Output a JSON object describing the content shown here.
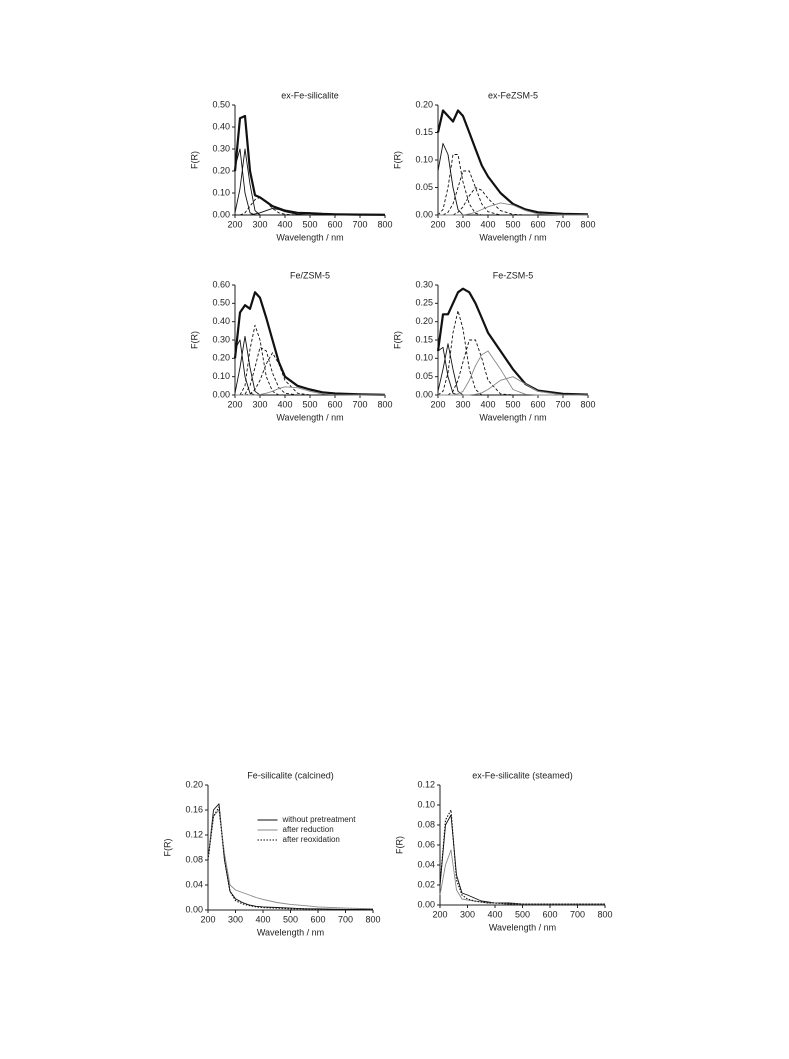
{
  "chart_data": [
    {
      "type": "line",
      "title": "ex-Fe-silicalite",
      "x_label": "Wavelength / nm",
      "y_label": "F(R)",
      "xlim": [
        200,
        800
      ],
      "xticks": [
        200,
        300,
        400,
        500,
        600,
        700,
        800
      ],
      "ylim": [
        0,
        0.5
      ],
      "yticks": [
        {
          "value": 0,
          "label": "0.00"
        },
        {
          "value": 0.1,
          "label": "0.10"
        },
        {
          "value": 0.2,
          "label": "0.20"
        },
        {
          "value": 0.3,
          "label": "0.30"
        },
        {
          "value": 0.4,
          "label": "0.40"
        },
        {
          "value": 0.5,
          "label": "0.50"
        }
      ],
      "x": [
        200,
        220,
        240,
        260,
        280,
        300,
        325,
        350,
        375,
        400,
        450,
        500,
        550,
        600,
        700,
        800
      ],
      "series": [
        {
          "color": "#111111",
          "style": "bold",
          "values": [
            0.2,
            0.44,
            0.45,
            0.2,
            0.09,
            0.08,
            0.06,
            0.04,
            0.03,
            0.02,
            0.01,
            0.008,
            0.005,
            0.003,
            0.002,
            0.001
          ]
        },
        {
          "color": "#111111",
          "style": "solid",
          "values": [
            0.22,
            0.3,
            0.1,
            0.01,
            0,
            0,
            0,
            0,
            0,
            0,
            0,
            0,
            0,
            0,
            0,
            0
          ]
        },
        {
          "color": "#111111",
          "style": "solid",
          "values": [
            0.01,
            0.12,
            0.3,
            0.14,
            0.02,
            0,
            0,
            0,
            0,
            0,
            0,
            0,
            0,
            0,
            0,
            0
          ]
        },
        {
          "color": "#111111",
          "style": "dashed",
          "values": [
            0,
            0,
            0.01,
            0.04,
            0.07,
            0.08,
            0.06,
            0.03,
            0.01,
            0.003,
            0,
            0,
            0,
            0,
            0,
            0
          ]
        },
        {
          "color": "#111111",
          "style": "solid",
          "values": [
            0,
            0,
            0,
            0,
            0.005,
            0.01,
            0.02,
            0.03,
            0.025,
            0.015,
            0.003,
            0,
            0,
            0,
            0,
            0
          ]
        }
      ]
    },
    {
      "type": "line",
      "title": "ex-FeZSM-5",
      "x_label": "Wavelength / nm",
      "y_label": "F(R)",
      "xlim": [
        200,
        800
      ],
      "xticks": [
        200,
        300,
        400,
        500,
        600,
        700,
        800
      ],
      "ylim": [
        0,
        0.2
      ],
      "yticks": [
        {
          "value": 0,
          "label": "0.00"
        },
        {
          "value": 0.05,
          "label": "0.05"
        },
        {
          "value": 0.1,
          "label": "0.10"
        },
        {
          "value": 0.15,
          "label": "0.15"
        },
        {
          "value": 0.2,
          "label": "0.20"
        }
      ],
      "x": [
        200,
        220,
        240,
        260,
        280,
        300,
        325,
        350,
        375,
        400,
        450,
        500,
        550,
        600,
        700,
        800
      ],
      "series": [
        {
          "color": "#111111",
          "style": "bold",
          "values": [
            0.15,
            0.19,
            0.18,
            0.17,
            0.19,
            0.18,
            0.15,
            0.12,
            0.09,
            0.07,
            0.04,
            0.02,
            0.01,
            0.005,
            0.002,
            0.001
          ]
        },
        {
          "color": "#111111",
          "style": "solid",
          "values": [
            0.08,
            0.13,
            0.11,
            0.05,
            0.01,
            0,
            0,
            0,
            0,
            0,
            0,
            0,
            0,
            0,
            0,
            0
          ]
        },
        {
          "color": "#111111",
          "style": "dashed",
          "values": [
            0,
            0.01,
            0.05,
            0.11,
            0.11,
            0.06,
            0.02,
            0.003,
            0,
            0,
            0,
            0,
            0,
            0,
            0,
            0
          ]
        },
        {
          "color": "#111111",
          "style": "dashed",
          "values": [
            0,
            0,
            0.005,
            0.02,
            0.05,
            0.08,
            0.08,
            0.05,
            0.02,
            0.006,
            0,
            0,
            0,
            0,
            0,
            0
          ]
        },
        {
          "color": "#111111",
          "style": "dashed",
          "values": [
            0,
            0,
            0,
            0,
            0.005,
            0.015,
            0.035,
            0.05,
            0.045,
            0.03,
            0.008,
            0.001,
            0,
            0,
            0,
            0
          ]
        },
        {
          "color": "#888888",
          "style": "solid",
          "values": [
            0,
            0,
            0,
            0,
            0,
            0,
            0.002,
            0.005,
            0.01,
            0.015,
            0.022,
            0.018,
            0.008,
            0.002,
            0,
            0
          ]
        }
      ]
    },
    {
      "type": "line",
      "title": "Fe/ZSM-5",
      "x_label": "Wavelength / nm",
      "y_label": "F(R)",
      "xlim": [
        200,
        800
      ],
      "xticks": [
        200,
        300,
        400,
        500,
        600,
        700,
        800
      ],
      "ylim": [
        0,
        0.6
      ],
      "yticks": [
        {
          "value": 0,
          "label": "0.00"
        },
        {
          "value": 0.1,
          "label": "0.10"
        },
        {
          "value": 0.2,
          "label": "0.20"
        },
        {
          "value": 0.3,
          "label": "0.30"
        },
        {
          "value": 0.4,
          "label": "0.40"
        },
        {
          "value": 0.5,
          "label": "0.50"
        },
        {
          "value": 0.6,
          "label": "0.60"
        }
      ],
      "x": [
        200,
        220,
        240,
        260,
        280,
        300,
        325,
        350,
        375,
        400,
        450,
        500,
        550,
        600,
        700,
        800
      ],
      "series": [
        {
          "color": "#111111",
          "style": "bold",
          "values": [
            0.2,
            0.45,
            0.49,
            0.47,
            0.56,
            0.53,
            0.42,
            0.3,
            0.18,
            0.1,
            0.05,
            0.03,
            0.015,
            0.008,
            0.003,
            0.001
          ]
        },
        {
          "color": "#111111",
          "style": "solid",
          "values": [
            0.25,
            0.3,
            0.1,
            0.01,
            0,
            0,
            0,
            0,
            0,
            0,
            0,
            0,
            0,
            0,
            0,
            0
          ]
        },
        {
          "color": "#111111",
          "style": "solid",
          "values": [
            0.01,
            0.15,
            0.32,
            0.15,
            0.02,
            0,
            0,
            0,
            0,
            0,
            0,
            0,
            0,
            0,
            0,
            0
          ]
        },
        {
          "color": "#111111",
          "style": "dashed",
          "values": [
            0,
            0,
            0.05,
            0.25,
            0.38,
            0.3,
            0.1,
            0.02,
            0,
            0,
            0,
            0,
            0,
            0,
            0,
            0
          ]
        },
        {
          "color": "#111111",
          "style": "dashed",
          "values": [
            0,
            0,
            0.005,
            0.05,
            0.15,
            0.26,
            0.24,
            0.12,
            0.04,
            0.01,
            0,
            0,
            0,
            0,
            0,
            0
          ]
        },
        {
          "color": "#111111",
          "style": "dashed",
          "values": [
            0,
            0,
            0,
            0.005,
            0.03,
            0.08,
            0.17,
            0.23,
            0.17,
            0.08,
            0.01,
            0,
            0,
            0,
            0,
            0
          ]
        },
        {
          "color": "#888888",
          "style": "solid",
          "values": [
            0,
            0,
            0,
            0,
            0,
            0.002,
            0.01,
            0.02,
            0.035,
            0.045,
            0.04,
            0.02,
            0.005,
            0.001,
            0,
            0
          ]
        }
      ]
    },
    {
      "type": "line",
      "title": "Fe-ZSM-5",
      "x_label": "Wavelength / nm",
      "y_label": "F(R)",
      "xlim": [
        200,
        800
      ],
      "xticks": [
        200,
        300,
        400,
        500,
        600,
        700,
        800
      ],
      "ylim": [
        0,
        0.3
      ],
      "yticks": [
        {
          "value": 0,
          "label": "0.00"
        },
        {
          "value": 0.05,
          "label": "0.05"
        },
        {
          "value": 0.1,
          "label": "0.10"
        },
        {
          "value": 0.15,
          "label": "0.15"
        },
        {
          "value": 0.2,
          "label": "0.20"
        },
        {
          "value": 0.25,
          "label": "0.25"
        },
        {
          "value": 0.3,
          "label": "0.30"
        }
      ],
      "x": [
        200,
        220,
        240,
        260,
        280,
        300,
        325,
        350,
        375,
        400,
        450,
        500,
        550,
        600,
        700,
        800
      ],
      "series": [
        {
          "color": "#111111",
          "style": "bold",
          "values": [
            0.12,
            0.22,
            0.22,
            0.25,
            0.28,
            0.29,
            0.28,
            0.25,
            0.21,
            0.17,
            0.12,
            0.07,
            0.03,
            0.012,
            0.003,
            0.001
          ]
        },
        {
          "color": "#111111",
          "style": "solid",
          "values": [
            0.12,
            0.13,
            0.05,
            0.005,
            0,
            0,
            0,
            0,
            0,
            0,
            0,
            0,
            0,
            0,
            0,
            0
          ]
        },
        {
          "color": "#111111",
          "style": "solid",
          "values": [
            0.01,
            0.07,
            0.14,
            0.07,
            0.01,
            0,
            0,
            0,
            0,
            0,
            0,
            0,
            0,
            0,
            0,
            0
          ]
        },
        {
          "color": "#111111",
          "style": "dashed",
          "values": [
            0,
            0.01,
            0.06,
            0.17,
            0.23,
            0.18,
            0.07,
            0.015,
            0,
            0,
            0,
            0,
            0,
            0,
            0,
            0
          ]
        },
        {
          "color": "#111111",
          "style": "dashed",
          "values": [
            0,
            0,
            0,
            0.01,
            0.04,
            0.09,
            0.15,
            0.15,
            0.1,
            0.04,
            0.003,
            0,
            0,
            0,
            0,
            0
          ]
        },
        {
          "color": "#888888",
          "style": "solid",
          "values": [
            0,
            0,
            0,
            0,
            0.003,
            0.01,
            0.04,
            0.08,
            0.11,
            0.12,
            0.07,
            0.015,
            0.002,
            0,
            0,
            0
          ]
        },
        {
          "color": "#888888",
          "style": "solid",
          "values": [
            0,
            0,
            0,
            0,
            0,
            0,
            0,
            0.002,
            0.006,
            0.015,
            0.04,
            0.05,
            0.03,
            0.01,
            0,
            0
          ]
        }
      ]
    },
    {
      "type": "line",
      "title": "Fe-silicalite (calcined)",
      "x_label": "Wavelength / nm",
      "y_label": "F(R)",
      "xlim": [
        200,
        800
      ],
      "xticks": [
        200,
        300,
        400,
        500,
        600,
        700,
        800
      ],
      "ylim": [
        0,
        0.2
      ],
      "yticks": [
        {
          "value": 0,
          "label": "0.00"
        },
        {
          "value": 0.04,
          "label": "0.04"
        },
        {
          "value": 0.08,
          "label": "0.08"
        },
        {
          "value": 0.12,
          "label": "0.12"
        },
        {
          "value": 0.16,
          "label": "0.16"
        },
        {
          "value": 0.2,
          "label": "0.20"
        }
      ],
      "legend": "upper right",
      "x": [
        200,
        220,
        240,
        260,
        280,
        300,
        325,
        350,
        375,
        400,
        450,
        500,
        550,
        600,
        700,
        800
      ],
      "series": [
        {
          "name": "without pretreatment",
          "color": "#111111",
          "style": "solid",
          "values": [
            0.08,
            0.16,
            0.17,
            0.08,
            0.03,
            0.018,
            0.012,
            0.008,
            0.006,
            0.005,
            0.004,
            0.003,
            0.002,
            0.002,
            0.001,
            0.001
          ]
        },
        {
          "name": "after reduction",
          "color": "#888888",
          "style": "solid",
          "values": [
            0.08,
            0.15,
            0.16,
            0.09,
            0.04,
            0.032,
            0.028,
            0.024,
            0.02,
            0.017,
            0.012,
            0.009,
            0.007,
            0.005,
            0.003,
            0.002
          ]
        },
        {
          "name": "after reoxidation",
          "color": "#111111",
          "style": "dotted",
          "values": [
            0.08,
            0.15,
            0.165,
            0.08,
            0.03,
            0.015,
            0.01,
            0.007,
            0.005,
            0.004,
            0.003,
            0.002,
            0.002,
            0.001,
            0.001,
            0.001
          ]
        }
      ]
    },
    {
      "type": "line",
      "title": "ex-Fe-silicalite (steamed)",
      "x_label": "Wavelength / nm",
      "y_label": "F(R)",
      "xlim": [
        200,
        800
      ],
      "xticks": [
        200,
        300,
        400,
        500,
        600,
        700,
        800
      ],
      "ylim": [
        0,
        0.12
      ],
      "yticks": [
        {
          "value": 0,
          "label": "0.00"
        },
        {
          "value": 0.02,
          "label": "0.02"
        },
        {
          "value": 0.04,
          "label": "0.04"
        },
        {
          "value": 0.06,
          "label": "0.06"
        },
        {
          "value": 0.08,
          "label": "0.08"
        },
        {
          "value": 0.1,
          "label": "0.10"
        },
        {
          "value": 0.12,
          "label": "0.12"
        }
      ],
      "x": [
        200,
        220,
        240,
        260,
        280,
        300,
        325,
        350,
        375,
        400,
        450,
        500,
        550,
        600,
        700,
        800
      ],
      "series": [
        {
          "color": "#111111",
          "style": "solid",
          "values": [
            0.02,
            0.08,
            0.09,
            0.03,
            0.012,
            0.01,
            0.007,
            0.004,
            0.003,
            0.002,
            0.002,
            0.001,
            0.001,
            0.001,
            0.001,
            0.001
          ]
        },
        {
          "color": "#888888",
          "style": "solid",
          "values": [
            0.01,
            0.04,
            0.055,
            0.015,
            0.006,
            0.005,
            0.004,
            0.003,
            0.002,
            0.002,
            0.001,
            0.001,
            0.001,
            0.001,
            0.001,
            0.001
          ]
        },
        {
          "color": "#111111",
          "style": "dotted",
          "values": [
            0.02,
            0.085,
            0.095,
            0.025,
            0.01,
            0.006,
            0.004,
            0.003,
            0.002,
            0.002,
            0.001,
            0.001,
            0.001,
            0.001,
            0.001,
            0.001
          ]
        }
      ]
    }
  ]
}
